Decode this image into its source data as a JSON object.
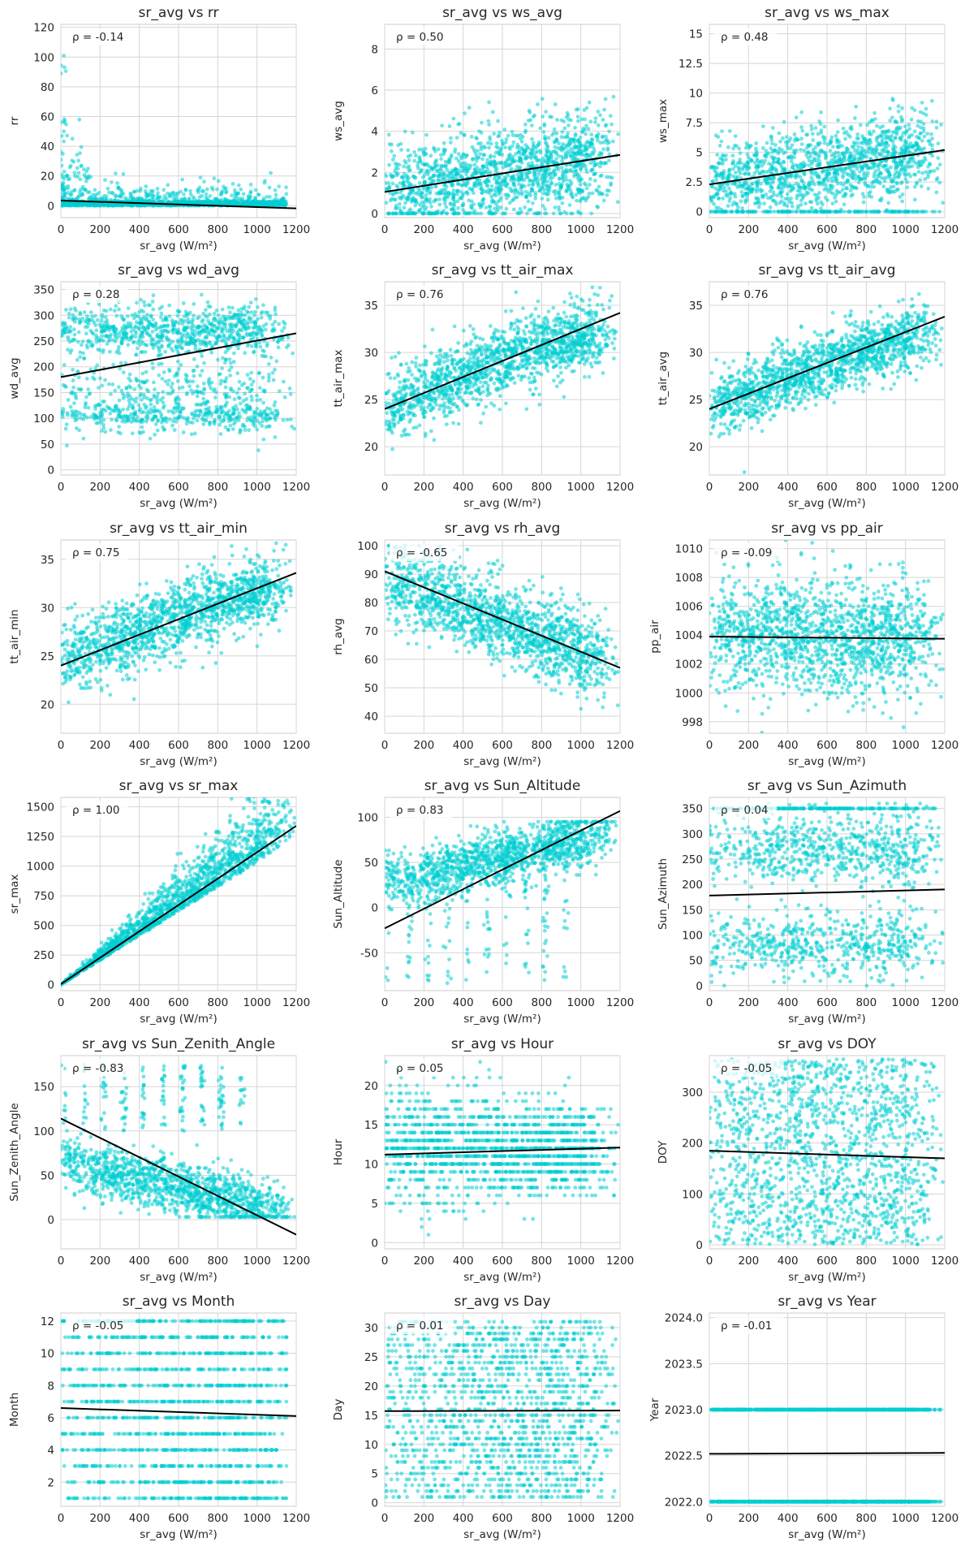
{
  "style": {
    "point_color": "#00ced1",
    "line_color": "#000000",
    "grid_color": "#d5d5d5"
  },
  "chart_data": [
    {
      "type": "scatter",
      "title": "sr_avg vs rr",
      "xlabel": "sr_avg (W/m²)",
      "ylabel": "rr",
      "annotation": "ρ = -0.14",
      "xlim": [
        0,
        1200
      ],
      "ylim": [
        -8,
        122
      ],
      "xticks": [
        0,
        200,
        400,
        600,
        800,
        1000,
        1200
      ],
      "yticks": [
        0,
        20,
        40,
        60,
        80,
        100,
        120
      ],
      "trend": [
        [
          0,
          3.5
        ],
        [
          1200,
          -1.8
        ]
      ]
    },
    {
      "type": "scatter",
      "title": "sr_avg vs ws_avg",
      "xlabel": "sr_avg (W/m²)",
      "ylabel": "ws_avg",
      "annotation": "ρ = 0.50",
      "xlim": [
        0,
        1200
      ],
      "ylim": [
        -0.2,
        9.2
      ],
      "xticks": [
        0,
        200,
        400,
        600,
        800,
        1000,
        1200
      ],
      "yticks": [
        0,
        2,
        4,
        6,
        8
      ],
      "trend": [
        [
          0,
          1.05
        ],
        [
          1200,
          2.85
        ]
      ]
    },
    {
      "type": "scatter",
      "title": "sr_avg vs ws_max",
      "xlabel": "sr_avg (W/m²)",
      "ylabel": "ws_max",
      "annotation": "ρ = 0.48",
      "xlim": [
        0,
        1200
      ],
      "ylim": [
        -0.5,
        15.8
      ],
      "xticks": [
        0,
        200,
        400,
        600,
        800,
        1000,
        1200
      ],
      "yticks": [
        0.0,
        2.5,
        5.0,
        7.5,
        10.0,
        12.5,
        15.0
      ],
      "trend": [
        [
          0,
          2.3
        ],
        [
          1200,
          5.2
        ]
      ]
    },
    {
      "type": "scatter",
      "title": "sr_avg vs wd_avg",
      "xlabel": "sr_avg (W/m²)",
      "ylabel": "wd_avg",
      "annotation": "ρ = 0.28",
      "xlim": [
        0,
        1200
      ],
      "ylim": [
        -10,
        365
      ],
      "xticks": [
        0,
        200,
        400,
        600,
        800,
        1000,
        1200
      ],
      "yticks": [
        0,
        50,
        100,
        150,
        200,
        250,
        300,
        350
      ],
      "trend": [
        [
          0,
          180
        ],
        [
          1200,
          265
        ]
      ]
    },
    {
      "type": "scatter",
      "title": "sr_avg vs tt_air_max",
      "xlabel": "sr_avg (W/m²)",
      "ylabel": "tt_air_max",
      "annotation": "ρ = 0.76",
      "xlim": [
        0,
        1200
      ],
      "ylim": [
        17,
        37.5
      ],
      "xticks": [
        0,
        200,
        400,
        600,
        800,
        1000,
        1200
      ],
      "yticks": [
        20,
        25,
        30,
        35
      ],
      "trend": [
        [
          0,
          24.0
        ],
        [
          1200,
          34.2
        ]
      ]
    },
    {
      "type": "scatter",
      "title": "sr_avg vs tt_air_avg",
      "xlabel": "sr_avg (W/m²)",
      "ylabel": "tt_air_avg",
      "annotation": "ρ = 0.76",
      "xlim": [
        0,
        1200
      ],
      "ylim": [
        17,
        37.5
      ],
      "xticks": [
        0,
        200,
        400,
        600,
        800,
        1000,
        1200
      ],
      "yticks": [
        20,
        25,
        30,
        35
      ],
      "trend": [
        [
          0,
          24.0
        ],
        [
          1200,
          33.8
        ]
      ]
    },
    {
      "type": "scatter",
      "title": "sr_avg vs tt_air_min",
      "xlabel": "sr_avg (W/m²)",
      "ylabel": "tt_air_min",
      "annotation": "ρ = 0.75",
      "xlim": [
        0,
        1200
      ],
      "ylim": [
        17,
        37.0
      ],
      "xticks": [
        0,
        200,
        400,
        600,
        800,
        1000,
        1200
      ],
      "yticks": [
        20,
        25,
        30,
        35
      ],
      "trend": [
        [
          0,
          24.0
        ],
        [
          1200,
          33.6
        ]
      ]
    },
    {
      "type": "scatter",
      "title": "sr_avg vs rh_avg",
      "xlabel": "sr_avg (W/m²)",
      "ylabel": "rh_avg",
      "annotation": "ρ = -0.65",
      "xlim": [
        0,
        1200
      ],
      "ylim": [
        34,
        102
      ],
      "xticks": [
        0,
        200,
        400,
        600,
        800,
        1000,
        1200
      ],
      "yticks": [
        40,
        50,
        60,
        70,
        80,
        90,
        100
      ],
      "trend": [
        [
          0,
          91
        ],
        [
          1200,
          57
        ]
      ]
    },
    {
      "type": "scatter",
      "title": "sr_avg vs pp_air",
      "xlabel": "sr_avg (W/m²)",
      "ylabel": "pp_air",
      "annotation": "ρ = -0.09",
      "xlim": [
        0,
        1200
      ],
      "ylim": [
        997.2,
        1010.6
      ],
      "xticks": [
        0,
        200,
        400,
        600,
        800,
        1000,
        1200
      ],
      "yticks": [
        998,
        1000,
        1002,
        1004,
        1006,
        1008,
        1010
      ],
      "trend": [
        [
          0,
          1003.9
        ],
        [
          1200,
          1003.75
        ]
      ]
    },
    {
      "type": "scatter",
      "title": "sr_avg vs sr_max",
      "xlabel": "sr_avg (W/m²)",
      "ylabel": "sr_max",
      "annotation": "ρ = 1.00",
      "xlim": [
        0,
        1200
      ],
      "ylim": [
        -50,
        1580
      ],
      "xticks": [
        0,
        200,
        400,
        600,
        800,
        1000,
        1200
      ],
      "yticks": [
        0,
        250,
        500,
        750,
        1000,
        1250,
        1500
      ],
      "trend": [
        [
          0,
          5
        ],
        [
          1200,
          1340
        ]
      ]
    },
    {
      "type": "scatter",
      "title": "sr_avg vs Sun_Altitude",
      "xlabel": "sr_avg (W/m²)",
      "ylabel": "Sun_Altitude",
      "annotation": "ρ = 0.83",
      "xlim": [
        0,
        1200
      ],
      "ylim": [
        -92,
        122
      ],
      "xticks": [
        0,
        200,
        400,
        600,
        800,
        1000,
        1200
      ],
      "yticks": [
        -50,
        0,
        50,
        100
      ],
      "trend": [
        [
          0,
          -23
        ],
        [
          1200,
          107
        ]
      ]
    },
    {
      "type": "scatter",
      "title": "sr_avg vs Sun_Azimuth",
      "xlabel": "sr_avg (W/m²)",
      "ylabel": "Sun_Azimuth",
      "annotation": "ρ = 0.04",
      "xlim": [
        0,
        1200
      ],
      "ylim": [
        -10,
        372
      ],
      "xticks": [
        0,
        200,
        400,
        600,
        800,
        1000,
        1200
      ],
      "yticks": [
        0,
        50,
        100,
        150,
        200,
        250,
        300,
        350
      ],
      "trend": [
        [
          0,
          178
        ],
        [
          1200,
          190
        ]
      ]
    },
    {
      "type": "scatter",
      "title": "sr_avg vs Sun_Zenith_Angle",
      "xlabel": "sr_avg (W/m²)",
      "ylabel": "Sun_Zenith_Angle",
      "annotation": "ρ = -0.83",
      "xlim": [
        0,
        1200
      ],
      "ylim": [
        -33,
        185
      ],
      "xticks": [
        0,
        200,
        400,
        600,
        800,
        1000,
        1200
      ],
      "yticks": [
        0,
        50,
        100,
        150
      ],
      "trend": [
        [
          0,
          114
        ],
        [
          1200,
          -17
        ]
      ]
    },
    {
      "type": "scatter",
      "title": "sr_avg vs Hour",
      "xlabel": "sr_avg (W/m²)",
      "ylabel": "Hour",
      "annotation": "ρ = 0.05",
      "xlim": [
        0,
        1200
      ],
      "ylim": [
        -0.8,
        23.8
      ],
      "xticks": [
        0,
        200,
        400,
        600,
        800,
        1000,
        1200
      ],
      "yticks": [
        0,
        5,
        10,
        15,
        20
      ],
      "trend": [
        [
          0,
          11.2
        ],
        [
          1200,
          12.1
        ]
      ]
    },
    {
      "type": "scatter",
      "title": "sr_avg vs DOY",
      "xlabel": "sr_avg (W/m²)",
      "ylabel": "DOY",
      "annotation": "ρ = -0.05",
      "xlim": [
        0,
        1200
      ],
      "ylim": [
        -8,
        372
      ],
      "xticks": [
        0,
        200,
        400,
        600,
        800,
        1000,
        1200
      ],
      "yticks": [
        0,
        100,
        200,
        300
      ],
      "trend": [
        [
          0,
          185
        ],
        [
          1200,
          170
        ]
      ]
    },
    {
      "type": "scatter",
      "title": "sr_avg vs Month",
      "xlabel": "sr_avg (W/m²)",
      "ylabel": "Month",
      "annotation": "ρ = -0.05",
      "xlim": [
        0,
        1200
      ],
      "ylim": [
        0.5,
        12.5
      ],
      "xticks": [
        0,
        200,
        400,
        600,
        800,
        1000,
        1200
      ],
      "yticks": [
        2,
        4,
        6,
        8,
        10,
        12
      ],
      "trend": [
        [
          0,
          6.6
        ],
        [
          1200,
          6.1
        ]
      ]
    },
    {
      "type": "scatter",
      "title": "sr_avg vs Day",
      "xlabel": "sr_avg (W/m²)",
      "ylabel": "Day",
      "annotation": "ρ = 0.01",
      "xlim": [
        0,
        1200
      ],
      "ylim": [
        -0.6,
        32.5
      ],
      "xticks": [
        0,
        200,
        400,
        600,
        800,
        1000,
        1200
      ],
      "yticks": [
        0,
        5,
        10,
        15,
        20,
        25,
        30
      ],
      "trend": [
        [
          0,
          15.7
        ],
        [
          1200,
          15.8
        ]
      ]
    },
    {
      "type": "scatter",
      "title": "sr_avg vs Year",
      "xlabel": "sr_avg (W/m²)",
      "ylabel": "Year",
      "annotation": "ρ = -0.01",
      "xlim": [
        0,
        1200
      ],
      "ylim": [
        2021.95,
        2024.05
      ],
      "xticks": [
        0,
        200,
        400,
        600,
        800,
        1000,
        1200
      ],
      "yticks": [
        2022.0,
        2022.5,
        2023.0,
        2023.5,
        2024.0
      ],
      "ytick_labels": [
        "2022.0",
        "2022.5",
        "2023.0",
        "2023.5",
        "2024.0"
      ],
      "trend": [
        [
          0,
          2022.52
        ],
        [
          1200,
          2022.53
        ]
      ]
    }
  ]
}
